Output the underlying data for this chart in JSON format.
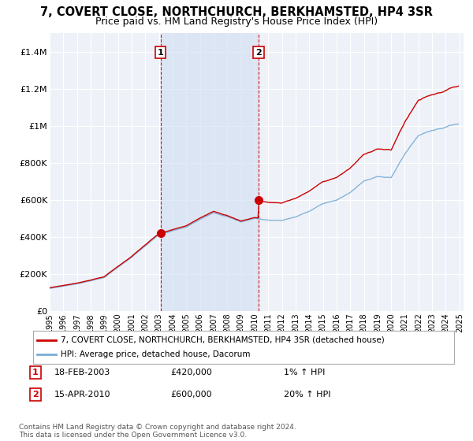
{
  "title": "7, COVERT CLOSE, NORTHCHURCH, BERKHAMSTED, HP4 3SR",
  "subtitle": "Price paid vs. HM Land Registry's House Price Index (HPI)",
  "title_fontsize": 10.5,
  "subtitle_fontsize": 9,
  "background_color": "#ffffff",
  "plot_bg_color": "#eef2f8",
  "shade_color": "#d0ddf0",
  "grid_color": "#ffffff",
  "ylim": [
    0,
    1500000
  ],
  "yticks": [
    0,
    200000,
    400000,
    600000,
    800000,
    1000000,
    1200000,
    1400000
  ],
  "ytick_labels": [
    "£0",
    "£200K",
    "£400K",
    "£600K",
    "£800K",
    "£1M",
    "£1.2M",
    "£1.4M"
  ],
  "marker1_year": 2003.12,
  "marker1_price": 420000,
  "marker2_year": 2010.29,
  "marker2_price": 600000,
  "marker1_label": "1",
  "marker2_label": "2",
  "sale1_date": "18-FEB-2003",
  "sale1_price": "£420,000",
  "sale1_hpi": "1% ↑ HPI",
  "sale2_date": "15-APR-2010",
  "sale2_price": "£600,000",
  "sale2_hpi": "20% ↑ HPI",
  "legend_label1": "7, COVERT CLOSE, NORTHCHURCH, BERKHAMSTED, HP4 3SR (detached house)",
  "legend_label2": "HPI: Average price, detached house, Dacorum",
  "line1_color": "#cc0000",
  "line2_color": "#7aadd4",
  "marker_box_color": "#cc0000",
  "dashed_line_color": "#cc0000",
  "dot_color": "#cc0000",
  "footnote": "Contains HM Land Registry data © Crown copyright and database right 2024.\nThis data is licensed under the Open Government Licence v3.0."
}
